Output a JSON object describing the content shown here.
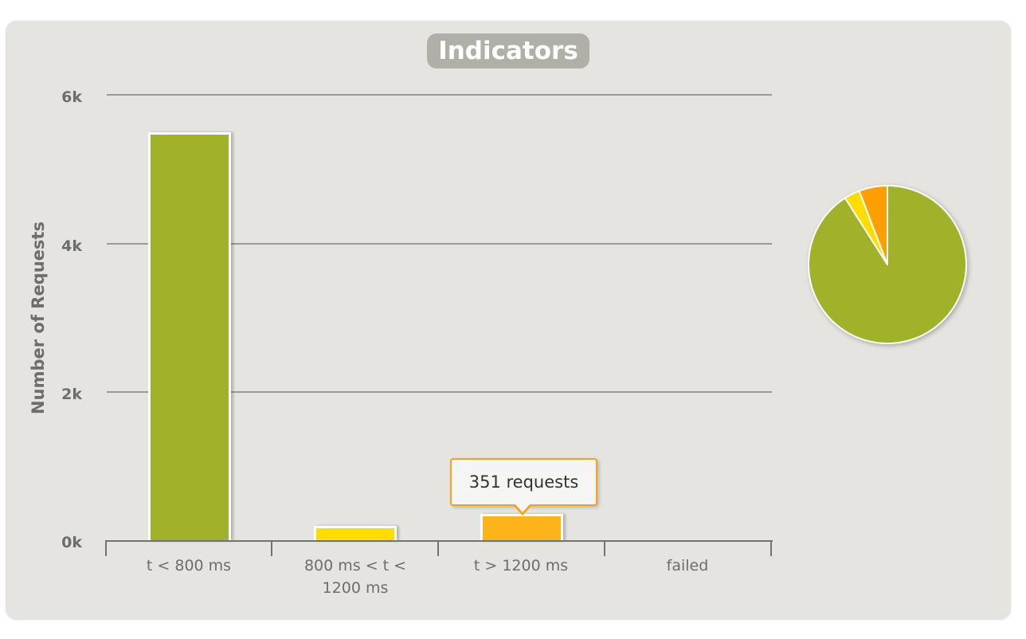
{
  "panel": {
    "title": "Indicators"
  },
  "chart_data": [
    {
      "type": "bar",
      "title": "Indicators",
      "xlabel": "",
      "ylabel": "Number of Requests",
      "ylim": [
        0,
        6000
      ],
      "yticks": [
        "0k",
        "2k",
        "4k",
        "6k"
      ],
      "grid": true,
      "categories": [
        "t < 800 ms",
        "800 ms < t < 1200 ms",
        "t > 1200 ms",
        "failed"
      ],
      "category_label_lines": [
        [
          "t < 800 ms"
        ],
        [
          "800 ms < t <",
          "1200 ms"
        ],
        [
          "t > 1200 ms"
        ],
        [
          "failed"
        ]
      ],
      "values": [
        5486,
        193,
        351,
        0
      ],
      "colors": [
        "#a1b22a",
        "#ffdd00",
        "#fdb31a",
        "#f15b4f"
      ],
      "tooltip": {
        "category": "t > 1200 ms",
        "text": "351 requests",
        "border_color": "#f7a21b"
      }
    },
    {
      "type": "pie",
      "labels": [
        "t < 800 ms",
        "800 ms < t < 1200 ms",
        "t > 1200 ms",
        "failed"
      ],
      "values": [
        5486,
        193,
        351,
        0
      ],
      "colors": [
        "#a1b22a",
        "#ffdd00",
        "#fd9f00",
        "#f15b4f"
      ]
    }
  ]
}
